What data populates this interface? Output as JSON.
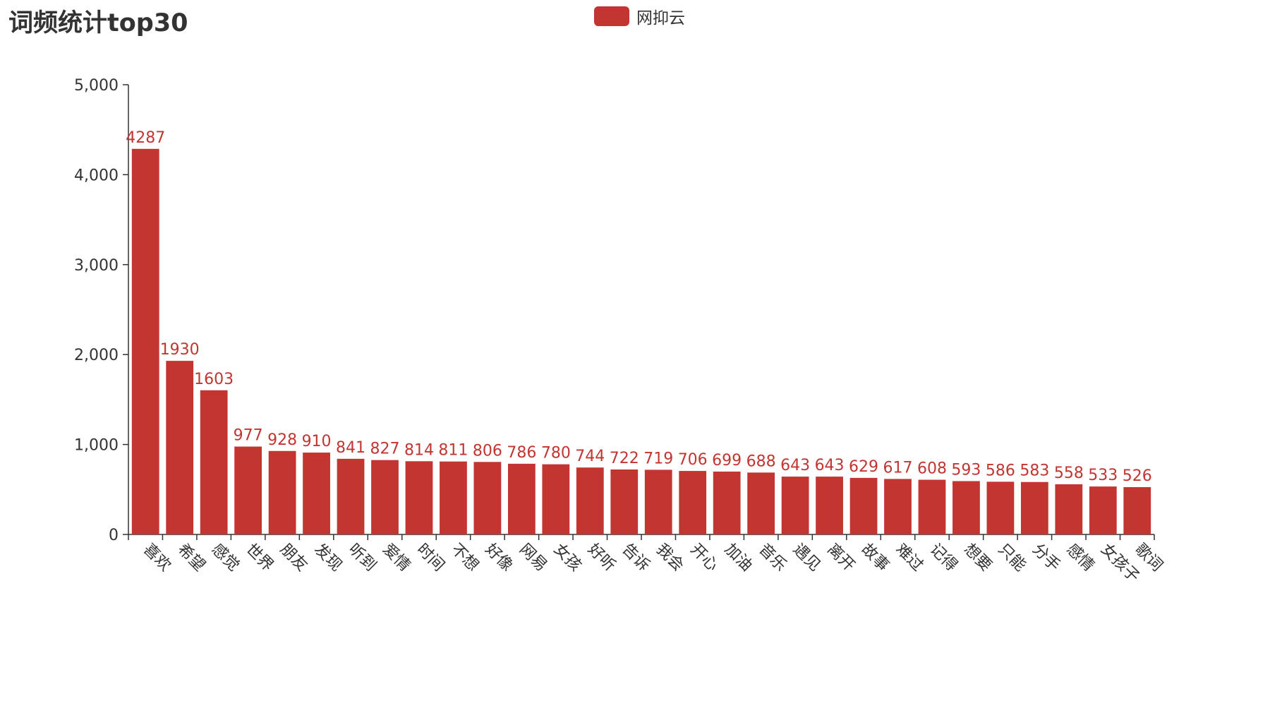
{
  "chart_data": {
    "type": "bar",
    "title": "词频统计top30",
    "legend_position": "top-center",
    "grid": false,
    "categories": [
      "喜欢",
      "希望",
      "感觉",
      "世界",
      "朋友",
      "发现",
      "听到",
      "爱情",
      "时间",
      "不想",
      "好像",
      "网易",
      "女孩",
      "好听",
      "告诉",
      "我会",
      "开心",
      "加油",
      "音乐",
      "遇见",
      "离开",
      "故事",
      "难过",
      "记得",
      "想要",
      "只能",
      "分手",
      "感情",
      "女孩子",
      "歌词"
    ],
    "series": [
      {
        "name": "网抑云",
        "color": "#c23531",
        "values": [
          4287,
          1930,
          1603,
          977,
          928,
          910,
          841,
          827,
          814,
          811,
          806,
          786,
          780,
          744,
          722,
          719,
          706,
          699,
          688,
          643,
          643,
          629,
          617,
          608,
          593,
          586,
          583,
          558,
          533,
          526
        ]
      }
    ],
    "ylim": [
      0,
      5000
    ],
    "yticks": [
      "0",
      "1,000",
      "2,000",
      "3,000",
      "4,000",
      "5,000"
    ],
    "xlabel": "",
    "ylabel": ""
  }
}
